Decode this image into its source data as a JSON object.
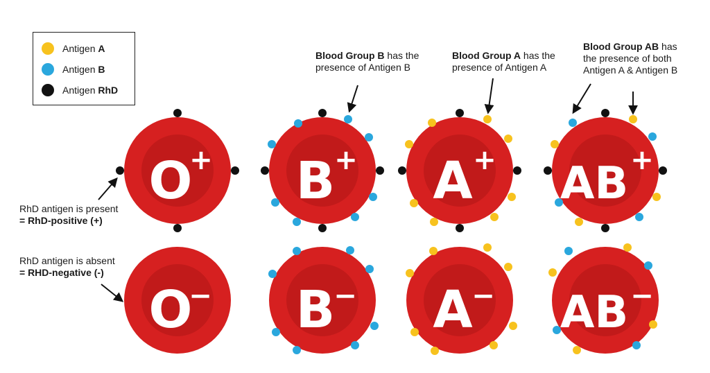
{
  "legend": {
    "items": [
      {
        "prefix": "Antigen ",
        "emph": "A",
        "color": "#f7c21e"
      },
      {
        "prefix": "Antigen ",
        "emph": "B",
        "color": "#2aa7dd"
      },
      {
        "prefix": "Antigen ",
        "emph": "RhD",
        "color": "#111111"
      }
    ]
  },
  "notes": {
    "b": {
      "bold": "Blood Group B",
      "rest1": " has the",
      "line2": "presence of Antigen B"
    },
    "a": {
      "bold": "Blood Group A",
      "rest1": " has the",
      "line2": "presence of Antigen A"
    },
    "ab": {
      "bold": "Blood Group AB",
      "rest1": " has",
      "line2": "the presence of both",
      "line3": "Antigen A & Antigen B"
    },
    "pos": {
      "line1": "RhD antigen is present",
      "line2": "= RhD-positive (+)"
    },
    "neg": {
      "line1": "RhD antigen is absent",
      "line2": "= RHD-negative (-)"
    }
  },
  "cells": [
    {
      "group": "O",
      "sign": "+",
      "row": "positive"
    },
    {
      "group": "B",
      "sign": "+",
      "row": "positive"
    },
    {
      "group": "A",
      "sign": "+",
      "row": "positive"
    },
    {
      "group": "AB",
      "sign": "+",
      "row": "positive"
    },
    {
      "group": "O",
      "sign": "−",
      "row": "negative"
    },
    {
      "group": "B",
      "sign": "−",
      "row": "negative"
    },
    {
      "group": "A",
      "sign": "−",
      "row": "negative"
    },
    {
      "group": "AB",
      "sign": "−",
      "row": "negative"
    }
  ],
  "colors": {
    "cell_outer": "#d62020",
    "cell_inner": "#c11a1a",
    "antigen_a": "#f7c21e",
    "antigen_b": "#2aa7dd",
    "antigen_rhd": "#111111",
    "arrow": "#111111"
  }
}
